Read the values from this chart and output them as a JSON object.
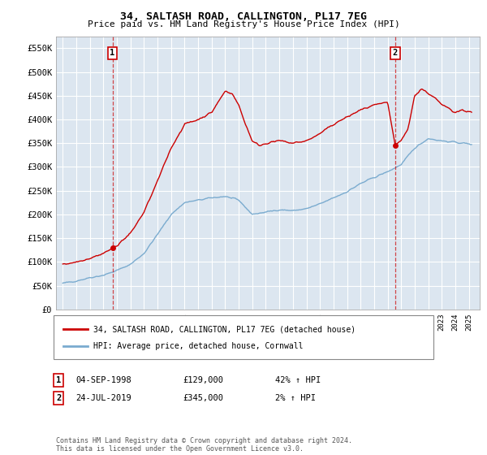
{
  "title": "34, SALTASH ROAD, CALLINGTON, PL17 7EG",
  "subtitle": "Price paid vs. HM Land Registry's House Price Index (HPI)",
  "red_label": "34, SALTASH ROAD, CALLINGTON, PL17 7EG (detached house)",
  "blue_label": "HPI: Average price, detached house, Cornwall",
  "annotation1_date": "04-SEP-1998",
  "annotation1_price": 129000,
  "annotation1_hpi": "42% ↑ HPI",
  "annotation2_date": "24-JUL-2019",
  "annotation2_price": 345000,
  "annotation2_hpi": "2% ↑ HPI",
  "footnote": "Contains HM Land Registry data © Crown copyright and database right 2024.\nThis data is licensed under the Open Government Licence v3.0.",
  "ylim": [
    0,
    575000
  ],
  "yticks": [
    0,
    50000,
    100000,
    150000,
    200000,
    250000,
    300000,
    350000,
    400000,
    450000,
    500000,
    550000
  ],
  "background_color": "#ffffff",
  "plot_bg_color": "#dce6f0",
  "grid_color": "#ffffff",
  "red_color": "#cc0000",
  "blue_color": "#7aabcf",
  "purchase1_year": 1998.67,
  "purchase2_year": 2019.56,
  "purchase1_price": 129000,
  "purchase2_price": 345000
}
